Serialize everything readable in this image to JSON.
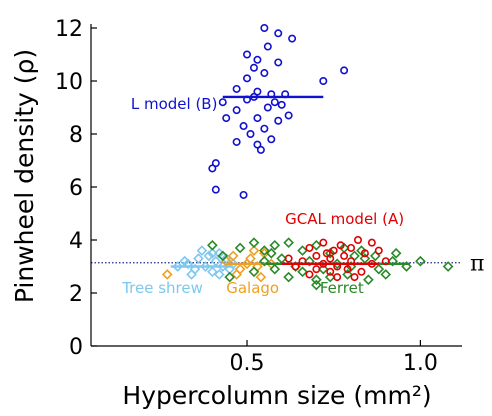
{
  "chart_data": {
    "type": "scatter",
    "xlabel": "Hypercolumn size (mm²)",
    "ylabel": "Pinwheel density (ρ)",
    "xlim": [
      0.05,
      1.12
    ],
    "ylim": [
      0,
      12
    ],
    "xticks": [
      {
        "value": 0.5,
        "label": "0.5"
      },
      {
        "value": 1.0,
        "label": "1.0"
      }
    ],
    "yticks": [
      {
        "value": 0,
        "label": "0"
      },
      {
        "value": 2,
        "label": "2"
      },
      {
        "value": 4,
        "label": "4"
      },
      {
        "value": 6,
        "label": "6"
      },
      {
        "value": 8,
        "label": "8"
      },
      {
        "value": 10,
        "label": "10"
      },
      {
        "value": 12,
        "label": "12"
      }
    ],
    "reference_line": {
      "label": "π",
      "value": 3.1416,
      "color": "#1a2a8c",
      "style": "dotted"
    },
    "series": [
      {
        "name": "L model (B)",
        "color": "#1010d0",
        "marker": "circle",
        "mean_line": {
          "x0": 0.43,
          "x1": 0.72,
          "y": 9.4
        },
        "points": [
          [
            0.55,
            12.0
          ],
          [
            0.59,
            11.8
          ],
          [
            0.63,
            11.6
          ],
          [
            0.56,
            11.3
          ],
          [
            0.5,
            11.0
          ],
          [
            0.53,
            10.8
          ],
          [
            0.59,
            10.7
          ],
          [
            0.78,
            10.4
          ],
          [
            0.52,
            10.5
          ],
          [
            0.55,
            10.3
          ],
          [
            0.72,
            10.0
          ],
          [
            0.5,
            10.1
          ],
          [
            0.47,
            9.7
          ],
          [
            0.53,
            9.6
          ],
          [
            0.57,
            9.5
          ],
          [
            0.61,
            9.5
          ],
          [
            0.52,
            9.4
          ],
          [
            0.5,
            9.3
          ],
          [
            0.58,
            9.2
          ],
          [
            0.43,
            9.2
          ],
          [
            0.56,
            9.0
          ],
          [
            0.6,
            9.1
          ],
          [
            0.47,
            8.9
          ],
          [
            0.62,
            8.7
          ],
          [
            0.53,
            8.6
          ],
          [
            0.44,
            8.6
          ],
          [
            0.59,
            8.5
          ],
          [
            0.49,
            8.3
          ],
          [
            0.55,
            8.2
          ],
          [
            0.51,
            8.0
          ],
          [
            0.57,
            7.8
          ],
          [
            0.53,
            7.6
          ],
          [
            0.47,
            7.7
          ],
          [
            0.54,
            7.4
          ],
          [
            0.41,
            6.9
          ],
          [
            0.4,
            6.7
          ],
          [
            0.41,
            5.9
          ],
          [
            0.49,
            5.7
          ]
        ]
      },
      {
        "name": "GCAL model (A)",
        "color": "#e00000",
        "marker": "circle",
        "mean_line": {
          "x0": 0.6,
          "x1": 0.88,
          "y": 3.1
        },
        "points": [
          [
            0.72,
            3.9
          ],
          [
            0.77,
            3.8
          ],
          [
            0.82,
            4.0
          ],
          [
            0.86,
            3.9
          ],
          [
            0.68,
            3.7
          ],
          [
            0.75,
            3.6
          ],
          [
            0.8,
            3.7
          ],
          [
            0.88,
            3.6
          ],
          [
            0.7,
            3.4
          ],
          [
            0.74,
            3.3
          ],
          [
            0.78,
            3.4
          ],
          [
            0.84,
            3.5
          ],
          [
            0.66,
            3.2
          ],
          [
            0.72,
            3.1
          ],
          [
            0.76,
            3.0
          ],
          [
            0.8,
            3.2
          ],
          [
            0.86,
            3.1
          ],
          [
            0.64,
            3.0
          ],
          [
            0.7,
            2.9
          ],
          [
            0.74,
            2.8
          ],
          [
            0.79,
            2.9
          ],
          [
            0.83,
            2.8
          ],
          [
            0.68,
            2.7
          ],
          [
            0.76,
            2.6
          ],
          [
            0.81,
            2.6
          ],
          [
            0.73,
            3.5
          ],
          [
            0.62,
            3.3
          ],
          [
            0.9,
            3.2
          ]
        ]
      },
      {
        "name": "Tree shrew",
        "color": "#7ec8ee",
        "marker": "diamond",
        "mean_line": {
          "x0": 0.28,
          "x1": 0.46,
          "y": 3.0
        },
        "points": [
          [
            0.3,
            3.0
          ],
          [
            0.33,
            3.1
          ],
          [
            0.35,
            2.9
          ],
          [
            0.36,
            3.3
          ],
          [
            0.38,
            3.0
          ],
          [
            0.39,
            3.4
          ],
          [
            0.4,
            2.8
          ],
          [
            0.41,
            3.2
          ],
          [
            0.42,
            3.5
          ],
          [
            0.43,
            3.0
          ],
          [
            0.44,
            3.3
          ],
          [
            0.45,
            2.9
          ],
          [
            0.37,
            3.6
          ],
          [
            0.34,
            2.7
          ],
          [
            0.46,
            3.1
          ],
          [
            0.32,
            3.2
          ],
          [
            0.4,
            3.5
          ],
          [
            0.42,
            2.7
          ]
        ]
      },
      {
        "name": "Galago",
        "color": "#f0a020",
        "marker": "diamond",
        "mean_line": {
          "x0": 0.44,
          "x1": 0.58,
          "y": 3.1
        },
        "points": [
          [
            0.27,
            2.7
          ],
          [
            0.44,
            3.2
          ],
          [
            0.46,
            3.4
          ],
          [
            0.48,
            2.9
          ],
          [
            0.5,
            3.1
          ],
          [
            0.51,
            3.3
          ],
          [
            0.53,
            3.0
          ],
          [
            0.54,
            2.6
          ],
          [
            0.55,
            3.5
          ],
          [
            0.57,
            3.1
          ],
          [
            0.47,
            2.7
          ],
          [
            0.52,
            3.6
          ]
        ]
      },
      {
        "name": "Ferret",
        "color": "#2a8a2a",
        "marker": "diamond",
        "mean_line": {
          "x0": 0.55,
          "x1": 0.97,
          "y": 3.1
        },
        "points": [
          [
            0.4,
            3.8
          ],
          [
            0.43,
            3.4
          ],
          [
            0.48,
            3.7
          ],
          [
            0.52,
            3.9
          ],
          [
            0.55,
            3.6
          ],
          [
            0.58,
            3.8
          ],
          [
            0.62,
            3.9
          ],
          [
            0.66,
            3.6
          ],
          [
            0.7,
            3.8
          ],
          [
            0.74,
            3.5
          ],
          [
            0.78,
            3.7
          ],
          [
            0.83,
            3.6
          ],
          [
            0.87,
            3.4
          ],
          [
            0.92,
            3.2
          ],
          [
            0.96,
            3.0
          ],
          [
            1.0,
            3.2
          ],
          [
            1.08,
            3.0
          ],
          [
            0.6,
            3.3
          ],
          [
            0.64,
            3.0
          ],
          [
            0.68,
            3.2
          ],
          [
            0.72,
            2.9
          ],
          [
            0.76,
            3.1
          ],
          [
            0.8,
            3.0
          ],
          [
            0.84,
            3.3
          ],
          [
            0.88,
            2.9
          ],
          [
            0.9,
            2.7
          ],
          [
            0.58,
            2.9
          ],
          [
            0.62,
            2.6
          ],
          [
            0.66,
            2.8
          ],
          [
            0.7,
            2.5
          ],
          [
            0.74,
            2.6
          ],
          [
            0.79,
            2.7
          ],
          [
            0.85,
            2.5
          ],
          [
            0.55,
            3.2
          ],
          [
            0.52,
            2.8
          ],
          [
            0.45,
            2.6
          ],
          [
            0.7,
            2.3
          ],
          [
            0.93,
            3.5
          ],
          [
            0.57,
            3.5
          ],
          [
            0.81,
            3.4
          ]
        ]
      }
    ],
    "series_labels": [
      {
        "text": "L model (B)",
        "color": "#1010d0",
        "x": 0.165,
        "y": 8.95
      },
      {
        "text": "GCAL model (A)",
        "color": "#e00000",
        "x": 0.61,
        "y": 4.6
      },
      {
        "text": "Tree shrew",
        "color": "#7ec8ee",
        "x": 0.14,
        "y": 2.0
      },
      {
        "text": "Galago",
        "color": "#f0a020",
        "x": 0.44,
        "y": 2.0
      },
      {
        "text": "Ferret",
        "color": "#2a8a2a",
        "x": 0.71,
        "y": 2.0
      }
    ]
  }
}
